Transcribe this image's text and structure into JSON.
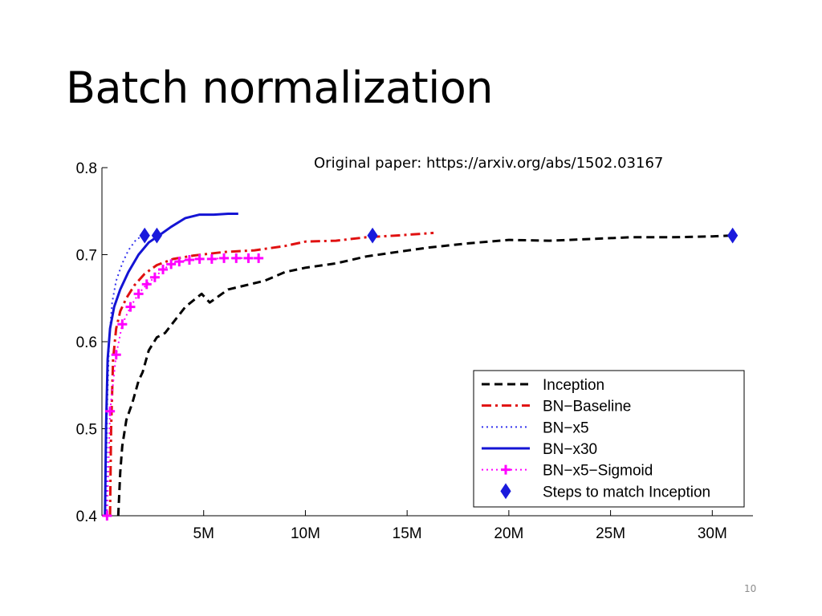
{
  "slide": {
    "title": "Batch normalization",
    "source_note": "Original paper: https://arxiv.org/abs/1502.03167",
    "page_number": "10"
  },
  "chart_data": {
    "type": "line",
    "title": "",
    "xlabel": "",
    "ylabel": "",
    "xlim": [
      0,
      32000000
    ],
    "ylim": [
      0.4,
      0.8
    ],
    "grid": false,
    "legend_position": "bottom-right",
    "x_ticks": [
      {
        "value": 5000000,
        "label": "5M"
      },
      {
        "value": 10000000,
        "label": "10M"
      },
      {
        "value": 15000000,
        "label": "15M"
      },
      {
        "value": 20000000,
        "label": "20M"
      },
      {
        "value": 25000000,
        "label": "25M"
      },
      {
        "value": 30000000,
        "label": "30M"
      }
    ],
    "y_ticks": [
      {
        "value": 0.4,
        "label": "0.4"
      },
      {
        "value": 0.5,
        "label": "0.5"
      },
      {
        "value": 0.6,
        "label": "0.6"
      },
      {
        "value": 0.7,
        "label": "0.7"
      },
      {
        "value": 0.8,
        "label": "0.8"
      }
    ],
    "series": [
      {
        "name": "Inception",
        "color": "#000000",
        "style": "dashed",
        "marker": "none",
        "points": [
          [
            800000,
            0.4
          ],
          [
            900000,
            0.45
          ],
          [
            1000000,
            0.48
          ],
          [
            1200000,
            0.51
          ],
          [
            1500000,
            0.53
          ],
          [
            1800000,
            0.555
          ],
          [
            2000000,
            0.565
          ],
          [
            2300000,
            0.59
          ],
          [
            2700000,
            0.605
          ],
          [
            3100000,
            0.61
          ],
          [
            3600000,
            0.625
          ],
          [
            4100000,
            0.64
          ],
          [
            4900000,
            0.655
          ],
          [
            5300000,
            0.645
          ],
          [
            6200000,
            0.66
          ],
          [
            7100000,
            0.665
          ],
          [
            8000000,
            0.67
          ],
          [
            9000000,
            0.68
          ],
          [
            10000000,
            0.685
          ],
          [
            11500000,
            0.69
          ],
          [
            13000000,
            0.698
          ],
          [
            14500000,
            0.703
          ],
          [
            16000000,
            0.708
          ],
          [
            18000000,
            0.713
          ],
          [
            20000000,
            0.717
          ],
          [
            22000000,
            0.716
          ],
          [
            24000000,
            0.718
          ],
          [
            26000000,
            0.72
          ],
          [
            28000000,
            0.72
          ],
          [
            30000000,
            0.721
          ],
          [
            31000000,
            0.722
          ]
        ]
      },
      {
        "name": "BN−Baseline",
        "color": "#e01010",
        "style": "dashdot",
        "marker": "none",
        "points": [
          [
            400000,
            0.4
          ],
          [
            450000,
            0.5
          ],
          [
            550000,
            0.58
          ],
          [
            700000,
            0.615
          ],
          [
            900000,
            0.635
          ],
          [
            1200000,
            0.65
          ],
          [
            1600000,
            0.665
          ],
          [
            2100000,
            0.678
          ],
          [
            2700000,
            0.688
          ],
          [
            3500000,
            0.695
          ],
          [
            4500000,
            0.699
          ],
          [
            6000000,
            0.703
          ],
          [
            7500000,
            0.705
          ],
          [
            9000000,
            0.71
          ],
          [
            10000000,
            0.715
          ],
          [
            11500000,
            0.716
          ],
          [
            13000000,
            0.72
          ],
          [
            14500000,
            0.722
          ],
          [
            16300000,
            0.725
          ]
        ]
      },
      {
        "name": "BN−x5",
        "color": "#3333ee",
        "style": "dotted",
        "marker": "none",
        "points": [
          [
            200000,
            0.4
          ],
          [
            250000,
            0.52
          ],
          [
            350000,
            0.6
          ],
          [
            500000,
            0.645
          ],
          [
            700000,
            0.67
          ],
          [
            1000000,
            0.69
          ],
          [
            1300000,
            0.705
          ],
          [
            1700000,
            0.718
          ],
          [
            2100000,
            0.722
          ]
        ]
      },
      {
        "name": "BN−x30",
        "color": "#1414d4",
        "style": "solid",
        "marker": "none",
        "points": [
          [
            150000,
            0.4
          ],
          [
            200000,
            0.5
          ],
          [
            280000,
            0.58
          ],
          [
            400000,
            0.615
          ],
          [
            600000,
            0.64
          ],
          [
            900000,
            0.66
          ],
          [
            1300000,
            0.68
          ],
          [
            1800000,
            0.7
          ],
          [
            2300000,
            0.714
          ],
          [
            2800000,
            0.722
          ],
          [
            3400000,
            0.732
          ],
          [
            4100000,
            0.742
          ],
          [
            4800000,
            0.746
          ],
          [
            5500000,
            0.746
          ],
          [
            6200000,
            0.747
          ],
          [
            6700000,
            0.747
          ]
        ]
      },
      {
        "name": "BN−x5−Sigmoid",
        "color": "#ff00ff",
        "style": "dotted",
        "marker": "plus",
        "points": [
          [
            250000,
            0.4
          ],
          [
            400000,
            0.52
          ],
          [
            700000,
            0.585
          ],
          [
            1000000,
            0.62
          ],
          [
            1400000,
            0.64
          ],
          [
            1800000,
            0.655
          ],
          [
            2200000,
            0.666
          ],
          [
            2600000,
            0.674
          ],
          [
            3000000,
            0.683
          ],
          [
            3400000,
            0.689
          ],
          [
            3800000,
            0.692
          ],
          [
            4300000,
            0.694
          ],
          [
            4800000,
            0.695
          ],
          [
            5400000,
            0.695
          ],
          [
            6000000,
            0.696
          ],
          [
            6600000,
            0.696
          ],
          [
            7200000,
            0.696
          ],
          [
            7700000,
            0.696
          ]
        ]
      },
      {
        "name": "Steps to match Inception",
        "color": "#1a1adc",
        "style": "none",
        "marker": "diamond",
        "points": [
          [
            2100000,
            0.722
          ],
          [
            2700000,
            0.722
          ],
          [
            13300000,
            0.722
          ],
          [
            31000000,
            0.722
          ]
        ]
      }
    ]
  }
}
